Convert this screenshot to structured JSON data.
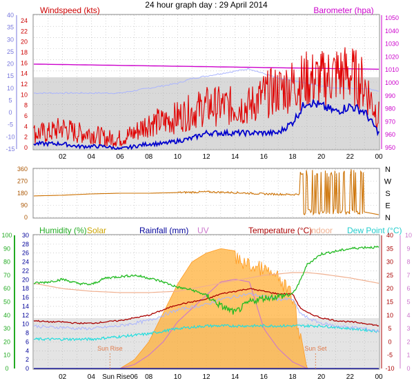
{
  "title": "24 hour graph day : 29 April 2014",
  "colors": {
    "wind": "#e00000",
    "gust_line": "#0000cc",
    "baro": "#cc00cc",
    "baro_bg": "#a9b4ff",
    "winddir": "#cc7000",
    "humidity": "#22bb22",
    "solar": "#ffb03a",
    "rainfall": "#000099",
    "uv": "#cc77cc",
    "temperature": "#aa0000",
    "indoor": "#f0b090",
    "dewpoint": "#22dddd",
    "temp_bg": "#a9b4ff",
    "grid": "#b0b0b0"
  },
  "chart_data": [
    {
      "type": "line",
      "panel": "wind-barometer",
      "x_ticks": [
        "02",
        "04",
        "06",
        "08",
        "10",
        "12",
        "14",
        "16",
        "18",
        "20",
        "22",
        "00"
      ],
      "xlim_hours": [
        0,
        24
      ],
      "left_axis": {
        "label": "Windspeed (kts)",
        "ticks": [
          "24",
          "22",
          "20",
          "18",
          "16",
          "14",
          "12",
          "10",
          "8",
          "6",
          "4",
          "2",
          "0"
        ],
        "ylim": [
          0,
          25
        ]
      },
      "left_outer_axis": {
        "ticks": [
          "40",
          "35",
          "30",
          "25",
          "20",
          "15",
          "10",
          "5",
          "0",
          "-5",
          "-10",
          "-15"
        ]
      },
      "right_axis": {
        "label": "Barometer (hpa)",
        "ticks": [
          "1050",
          "1040",
          "1030",
          "1020",
          "1010",
          "1000",
          "990",
          "980",
          "970",
          "960",
          "950"
        ],
        "ylim": [
          948,
          1052
        ]
      },
      "series": [
        {
          "name": "Windspeed (kts)",
          "x": [
            0,
            1,
            2,
            3,
            4,
            5,
            6,
            7,
            8,
            9,
            10,
            11,
            12,
            13,
            14,
            15,
            16,
            17,
            18,
            19,
            20,
            21,
            22,
            23,
            24
          ],
          "values": [
            3,
            3,
            4,
            3,
            3,
            2,
            2,
            3,
            5,
            5,
            6,
            7,
            8,
            8,
            8,
            8,
            10,
            11,
            12,
            13,
            13,
            14,
            14,
            12,
            6
          ]
        },
        {
          "name": "Gust",
          "x": [
            0,
            1,
            2,
            3,
            4,
            5,
            6,
            7,
            8,
            9,
            10,
            11,
            12,
            13,
            14,
            15,
            16,
            17,
            18,
            19,
            20,
            21,
            22,
            23,
            24
          ],
          "values": [
            1,
            1,
            1,
            0.5,
            0.5,
            0.5,
            0,
            0.5,
            1,
            1,
            1.5,
            2,
            3,
            3,
            3,
            3,
            3,
            3,
            5,
            9,
            8,
            7,
            8,
            7,
            3
          ]
        },
        {
          "name": "Barometer (hpa)",
          "x": [
            0,
            24
          ],
          "values": [
            1014,
            1010
          ]
        },
        {
          "name": "Temperature trace",
          "x": [
            0,
            1,
            2,
            3,
            4,
            5,
            6,
            7,
            8,
            9,
            10,
            11,
            12,
            13,
            14,
            15,
            16,
            17,
            18,
            19,
            20,
            21,
            22,
            23,
            24
          ],
          "values": [
            8,
            8,
            8,
            8,
            8,
            8,
            8,
            9,
            10,
            11,
            12,
            14,
            15,
            16,
            17,
            18,
            16,
            14,
            13,
            12,
            11,
            10,
            10,
            10,
            9
          ]
        }
      ]
    },
    {
      "type": "line",
      "panel": "wind-direction",
      "x_ticks": [
        "02",
        "04",
        "06",
        "08",
        "10",
        "12",
        "14",
        "16",
        "18",
        "20",
        "22",
        "00"
      ],
      "xlim_hours": [
        0,
        24
      ],
      "left_axis": {
        "ticks": [
          "360",
          "270",
          "180",
          "90",
          "0"
        ],
        "ylim": [
          0,
          360
        ]
      },
      "right_axis": {
        "ticks": [
          "N",
          "W",
          "S",
          "E",
          "N"
        ]
      },
      "series": [
        {
          "name": "Wind direction",
          "x": [
            0,
            2,
            4,
            6,
            8,
            10,
            12,
            14,
            16,
            18,
            19,
            20,
            21,
            22,
            23,
            24
          ],
          "values": [
            160,
            165,
            175,
            180,
            180,
            185,
            190,
            185,
            175,
            170,
            180,
            185,
            200,
            180,
            40,
            20
          ]
        }
      ]
    },
    {
      "type": "line",
      "panel": "temperature-humidity",
      "x_ticks": [
        "02",
        "04",
        "Sun Rise06",
        "08",
        "10",
        "12",
        "14",
        "16",
        "18",
        "20",
        "22",
        "00"
      ],
      "xlim_hours": [
        0,
        24
      ],
      "legend": [
        "Humidity (%)",
        "Solar",
        "Rainfall (mm)",
        "UV",
        "Temperature (°C)",
        "Indoor",
        "Dew Point (°C)"
      ],
      "annotations": [
        "Sun Rise",
        "Sun Set"
      ],
      "left_humidity_axis": {
        "ticks": [
          "100",
          "90",
          "80",
          "70",
          "60",
          "50",
          "40",
          "30",
          "20",
          "10",
          "0"
        ],
        "ylim": [
          0,
          100
        ]
      },
      "left_rain_axis": {
        "ticks": [
          "30",
          "28",
          "26",
          "24",
          "22",
          "20",
          "18",
          "16",
          "14",
          "12",
          "10",
          "8",
          "6",
          "4",
          "2",
          "0"
        ],
        "ylim": [
          0,
          30
        ]
      },
      "right_temp_axis": {
        "ticks": [
          "40",
          "35",
          "30",
          "25",
          "20",
          "15",
          "10",
          "5",
          "0",
          "-5",
          "-10"
        ],
        "ylim": [
          -10,
          40
        ]
      },
      "right_uv_axis": {
        "ticks": [
          "10",
          "9",
          "8",
          "7",
          "6",
          "5",
          "4",
          "3",
          "2",
          "1",
          "0"
        ],
        "ylim": [
          0,
          10
        ]
      },
      "series": [
        {
          "name": "Humidity (%)",
          "x": [
            0,
            1,
            2,
            3,
            4,
            5,
            6,
            7,
            8,
            9,
            10,
            11,
            12,
            13,
            14,
            15,
            16,
            17,
            18,
            18.5,
            19,
            20,
            21,
            22,
            23,
            24
          ],
          "values": [
            64,
            65,
            67,
            64,
            63,
            68,
            69,
            70,
            68,
            65,
            61,
            59,
            55,
            47,
            42,
            50,
            53,
            54,
            56,
            65,
            78,
            86,
            88,
            90,
            91,
            91
          ]
        },
        {
          "name": "Temperature (°C)",
          "x": [
            0,
            1,
            2,
            3,
            4,
            5,
            6,
            7,
            8,
            9,
            10,
            11,
            12,
            13,
            14,
            15,
            16,
            17,
            18,
            18.5,
            19,
            20,
            21,
            22,
            23,
            24
          ],
          "values": [
            8,
            7.5,
            7.5,
            7,
            7,
            7.5,
            8,
            9,
            10,
            12,
            14,
            15,
            16,
            18,
            19,
            20,
            19,
            18,
            18,
            13,
            11,
            9,
            8,
            7.5,
            7,
            6
          ]
        },
        {
          "name": "Indoor",
          "x": [
            0,
            2,
            4,
            6,
            8,
            10,
            12,
            14,
            16,
            18,
            19,
            20,
            22,
            24
          ],
          "values": [
            22,
            20,
            19,
            18.5,
            18.5,
            19,
            21,
            23,
            25,
            26,
            26,
            25.5,
            24,
            22
          ]
        },
        {
          "name": "Dew Point (°C)",
          "x": [
            0,
            2,
            4,
            6,
            8,
            10,
            12,
            14,
            16,
            18,
            20,
            22,
            24
          ],
          "values": [
            1,
            1,
            1,
            2,
            3,
            5,
            6,
            6,
            6,
            6,
            6,
            5,
            4
          ]
        },
        {
          "name": "Solar",
          "x": [
            0,
            5,
            6,
            7,
            8,
            9,
            10,
            11,
            12,
            13,
            14,
            15,
            16,
            17,
            18,
            19,
            24
          ],
          "values": [
            0,
            0,
            0,
            40,
            120,
            250,
            380,
            480,
            520,
            540,
            530,
            500,
            480,
            440,
            360,
            0,
            0
          ],
          "ylim": [
            0,
            600
          ]
        },
        {
          "name": "UV",
          "x": [
            0,
            6,
            7,
            8,
            9,
            10,
            11,
            12,
            13,
            14,
            15,
            16,
            17,
            18,
            19,
            24
          ],
          "values": [
            0,
            0,
            0.3,
            1,
            2,
            3.5,
            4.5,
            5.5,
            6.5,
            6.7,
            6.5,
            3,
            1.5,
            0.5,
            0,
            0
          ]
        },
        {
          "name": "Rainfall (mm)",
          "x": [
            0,
            24
          ],
          "values": [
            0,
            0
          ]
        }
      ]
    }
  ]
}
